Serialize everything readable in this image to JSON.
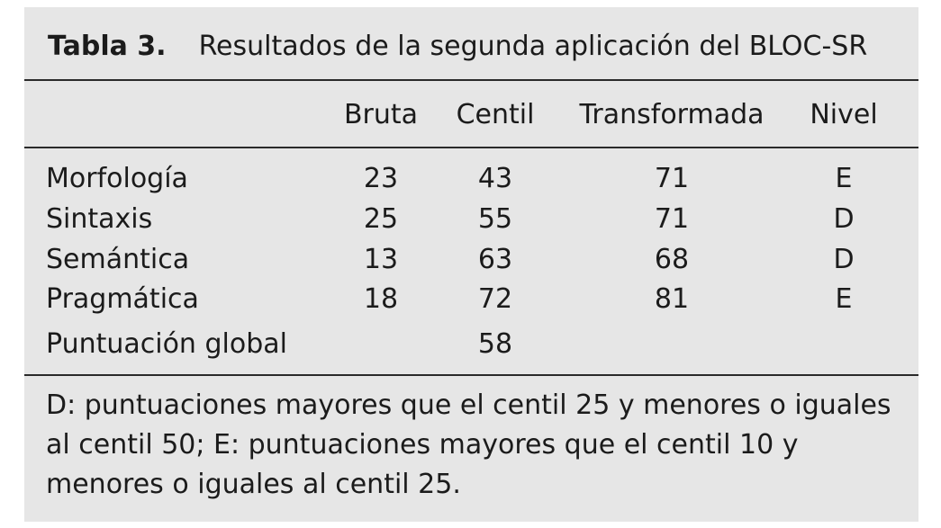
{
  "table": {
    "caption_label": "Tabla 3.",
    "caption_title": "Resultados de la segunda aplicación del BLOC-SR",
    "headers": {
      "bruta": "Bruta",
      "centil": "Centil",
      "transformada": "Transformada",
      "nivel": "Nivel"
    },
    "rows": [
      {
        "label": "Morfología",
        "bruta": "23",
        "centil": "43",
        "transformada": "71",
        "nivel": "E"
      },
      {
        "label": "Sintaxis",
        "bruta": "25",
        "centil": "55",
        "transformada": "71",
        "nivel": "D"
      },
      {
        "label": "Semántica",
        "bruta": "13",
        "centil": "63",
        "transformada": "68",
        "nivel": "D"
      },
      {
        "label": "Pragmática",
        "bruta": "18",
        "centil": "72",
        "transformada": "81",
        "nivel": "E"
      },
      {
        "label": "Puntuación global",
        "bruta": "",
        "centil": "58",
        "transformada": "",
        "nivel": ""
      }
    ],
    "footnote": "D: puntuaciones mayores que el centil 25 y menores o iguales al centil 50; E: puntuaciones mayores que el centil 10 y menores o iguales al centil 25."
  }
}
